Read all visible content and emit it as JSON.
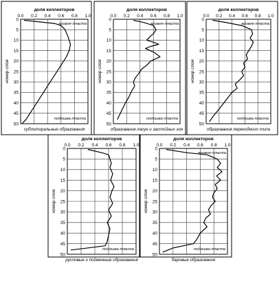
{
  "chart_data": [
    {
      "type": "line",
      "title": "доля коллекторов",
      "ylabel": "номер слоя",
      "xlim": [
        0,
        1
      ],
      "ylim": [
        0,
        50
      ],
      "y_reversed": true,
      "grid": true,
      "x_ticks": [
        "0.0",
        "0.2",
        "0.4",
        "0.6",
        "0.8",
        "1.0"
      ],
      "y_ticks": [
        "0",
        "5",
        "10",
        "15",
        "20",
        "25",
        "30",
        "35",
        "40",
        "45",
        "50"
      ],
      "annotations": {
        "top": "кровля пласта",
        "bottom": "подошва пласта"
      },
      "caption": "сублиторальные образования",
      "series": [
        {
          "x": [
            0.05,
            0.2,
            0.35,
            0.5,
            0.6,
            0.66,
            0.7,
            0.72,
            0.74,
            0.72,
            0.68,
            0.62,
            0.56,
            0.5,
            0.44,
            0.38,
            0.32,
            0.26,
            0.2,
            0.14,
            0.08,
            0.02
          ],
          "y": [
            0.5,
            1,
            1.5,
            2,
            3,
            5,
            8,
            10,
            12,
            15,
            18,
            21,
            24,
            27,
            30,
            33,
            36,
            39,
            42,
            45,
            48,
            50
          ]
        }
      ]
    },
    {
      "type": "line",
      "title": "доля коллекторов",
      "ylabel": "номер слоя",
      "xlim": [
        0,
        1
      ],
      "ylim": [
        0,
        50
      ],
      "y_reversed": true,
      "grid": true,
      "x_ticks": [
        "0.0",
        "0.2",
        "0.4",
        "0.6",
        "0.8",
        "1.0"
      ],
      "y_ticks": [
        "0",
        "5",
        "10",
        "15",
        "20",
        "25",
        "30",
        "35",
        "40",
        "45",
        "50"
      ],
      "annotations": {
        "top": "кровля пласта",
        "bottom": "подошва пласта"
      },
      "caption": "образования лагун и застойных зон",
      "series": [
        {
          "x": [
            0.3,
            0.45,
            0.6,
            0.64,
            0.6,
            0.56,
            0.5,
            0.6,
            0.68,
            0.56,
            0.48,
            0.62,
            0.7,
            0.56,
            0.5,
            0.42,
            0.38,
            0.33,
            0.3,
            0.32,
            0.28,
            0.25,
            0.22,
            0.18,
            0.12,
            0.06
          ],
          "y": [
            0.5,
            1.5,
            3,
            5,
            7,
            8,
            10,
            11,
            12,
            13,
            14,
            16,
            18,
            20,
            22,
            24,
            26,
            28,
            30,
            32,
            34,
            36,
            38,
            40,
            44,
            48
          ]
        }
      ]
    },
    {
      "type": "line",
      "title": "доля коллекторов",
      "ylabel": "номер слоя",
      "xlim": [
        0,
        1
      ],
      "ylim": [
        0,
        50
      ],
      "y_reversed": true,
      "grid": true,
      "x_ticks": [
        "0.0",
        "0.2",
        "0.4",
        "0.6",
        "0.8",
        "1.0"
      ],
      "y_ticks": [
        "0",
        "5",
        "10",
        "15",
        "20",
        "25",
        "30",
        "35",
        "40",
        "45",
        "50"
      ],
      "annotations": {
        "top": "кровля пласта",
        "bottom": "подошва пласта"
      },
      "caption": "образования переходного типа",
      "series": [
        {
          "x": [
            0.1,
            0.3,
            0.55,
            0.7,
            0.72,
            0.68,
            0.73,
            0.7,
            0.66,
            0.62,
            0.64,
            0.58,
            0.6,
            0.55,
            0.58,
            0.52,
            0.45,
            0.48,
            0.4,
            0.35,
            0.3,
            0.25,
            0.2,
            0.12,
            0.05
          ],
          "y": [
            0.5,
            1.5,
            3,
            5,
            7,
            9,
            11,
            13,
            15,
            17,
            19,
            21,
            23,
            25,
            27,
            29,
            31,
            33,
            35,
            37,
            39,
            41,
            43,
            46,
            49
          ]
        }
      ]
    },
    {
      "type": "line",
      "title": "доля коллекторов",
      "ylabel": "номер слоя",
      "xlim": [
        0,
        1
      ],
      "ylim": [
        0,
        50
      ],
      "y_reversed": true,
      "grid": true,
      "x_ticks": [
        "0.0",
        "0.2",
        "0.4",
        "0.6",
        "0.8",
        "1.0"
      ],
      "y_ticks": [
        "0",
        "5",
        "10",
        "15",
        "20",
        "25",
        "30",
        "35",
        "40",
        "45",
        "50"
      ],
      "annotations": {
        "bottom": "подошва пласта"
      },
      "caption": "русловые и пойменные образования",
      "series": [
        {
          "x": [
            0.3,
            0.5,
            0.6,
            0.62,
            0.64,
            0.62,
            0.66,
            0.63,
            0.68,
            0.65,
            0.62,
            0.66,
            0.6,
            0.64,
            0.58,
            0.62,
            0.6,
            0.58,
            0.55,
            0.3,
            0.05
          ],
          "y": [
            0.5,
            2,
            3,
            5,
            7,
            9,
            12,
            15,
            18,
            20,
            23,
            26,
            29,
            32,
            35,
            38,
            41,
            44,
            46,
            47,
            48
          ]
        }
      ]
    },
    {
      "type": "line",
      "title": "доля коллекторов",
      "ylabel": "номер слоя",
      "xlim": [
        0,
        1
      ],
      "ylim": [
        0,
        50
      ],
      "y_reversed": true,
      "grid": true,
      "x_ticks": [
        "0.0",
        "0.2",
        "0.4",
        "0.6",
        "0.8",
        "1.0"
      ],
      "y_ticks": [
        "0",
        "5",
        "10",
        "15",
        "20",
        "25",
        "30",
        "35",
        "40",
        "45",
        "50"
      ],
      "annotations": {
        "top": "кровля пласта",
        "bottom": "подошва пласта"
      },
      "caption": "баровые образования",
      "series": [
        {
          "x": [
            0.1,
            0.4,
            0.7,
            0.85,
            0.9,
            0.85,
            0.92,
            0.84,
            0.9,
            0.82,
            0.85,
            0.8,
            0.78,
            0.82,
            0.76,
            0.72,
            0.75,
            0.68,
            0.65,
            0.7,
            0.6,
            0.55,
            0.5,
            0.2,
            0.05
          ],
          "y": [
            0.5,
            2,
            3,
            5,
            7,
            9,
            11,
            13,
            15,
            17,
            19,
            21,
            23,
            25,
            27,
            29,
            31,
            33,
            35,
            37,
            40,
            43,
            45,
            47,
            49
          ]
        }
      ]
    }
  ]
}
